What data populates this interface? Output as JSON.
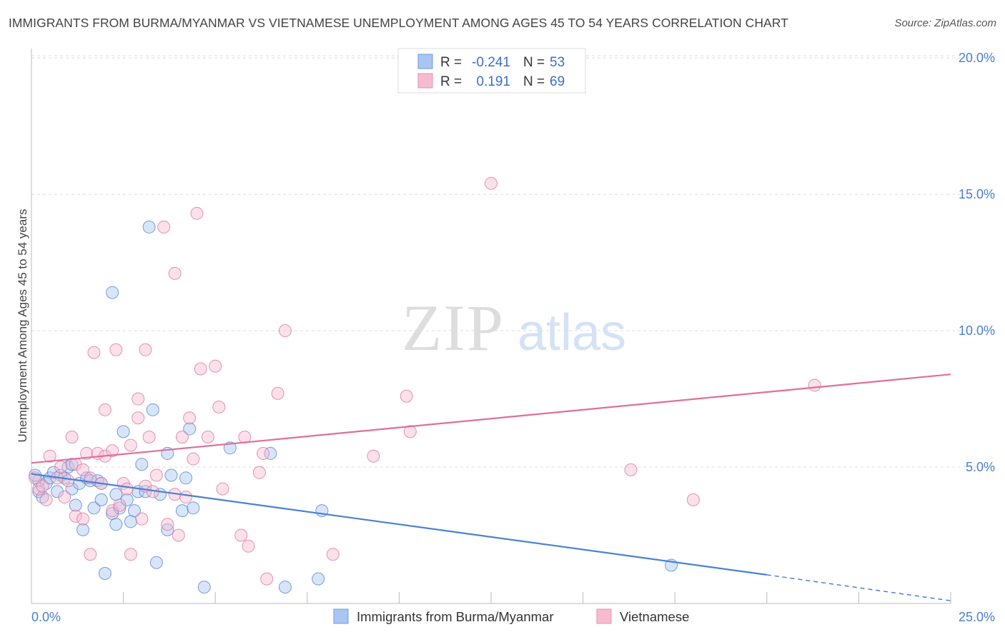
{
  "title": "IMMIGRANTS FROM BURMA/MYANMAR VS VIETNAMESE UNEMPLOYMENT AMONG AGES 45 TO 54 YEARS CORRELATION CHART",
  "source": "Source: ZipAtlas.com",
  "colors": {
    "blue": "#4a80d4",
    "pink": "#e06f9a",
    "blue_fill": "#a9c6f2",
    "pink_fill": "#f5bcd0",
    "axis_label": "#4a7fd1"
  },
  "chart_data": {
    "type": "scatter",
    "title": "IMMIGRANTS FROM BURMA/MYANMAR VS VIETNAMESE UNEMPLOYMENT AMONG AGES 45 TO 54 YEARS CORRELATION CHART",
    "xlabel": "",
    "ylabel": "Unemployment Among Ages 45 to 54 years",
    "xlim": [
      0,
      25
    ],
    "ylim": [
      0,
      20.5
    ],
    "x_tick_labels": [
      "0.0%",
      "25.0%"
    ],
    "y_ticks": [
      5,
      10,
      15,
      20
    ],
    "y_tick_labels": [
      "5.0%",
      "10.0%",
      "15.0%",
      "20.0%"
    ],
    "grid": true,
    "watermark": {
      "bold": "ZIP",
      "light": "atlas"
    },
    "legend": {
      "position": "top-center",
      "entries": [
        {
          "r_label": "R =",
          "r_value": "-0.241",
          "n_label": "N =",
          "n_value": "53"
        },
        {
          "r_label": "R =",
          "r_value": "0.191",
          "n_label": "N =",
          "n_value": "69"
        }
      ]
    },
    "series": [
      {
        "name": "Immigrants from Burma/Myanmar",
        "color": "blue",
        "trend": {
          "x0": 0,
          "y0": 4.75,
          "x1": 20,
          "y1": 1.05,
          "dashed_to_x": 25,
          "dashed_to_y": 0.1
        },
        "points": [
          [
            0.2,
            4.5
          ],
          [
            0.2,
            4.1
          ],
          [
            0.3,
            3.9
          ],
          [
            0.4,
            4.4
          ],
          [
            0.5,
            4.6
          ],
          [
            0.6,
            4.8
          ],
          [
            0.7,
            4.1
          ],
          [
            0.8,
            4.7
          ],
          [
            0.9,
            4.6
          ],
          [
            1.0,
            5.0
          ],
          [
            1.1,
            5.1
          ],
          [
            1.1,
            4.2
          ],
          [
            1.2,
            3.6
          ],
          [
            1.3,
            4.4
          ],
          [
            1.4,
            2.7
          ],
          [
            1.5,
            4.6
          ],
          [
            1.6,
            4.5
          ],
          [
            1.7,
            3.5
          ],
          [
            1.8,
            4.5
          ],
          [
            1.9,
            3.8
          ],
          [
            1.9,
            4.4
          ],
          [
            2.0,
            1.1
          ],
          [
            2.2,
            11.4
          ],
          [
            2.2,
            3.3
          ],
          [
            2.3,
            2.9
          ],
          [
            2.3,
            4.0
          ],
          [
            2.4,
            3.5
          ],
          [
            2.5,
            6.3
          ],
          [
            2.6,
            3.8
          ],
          [
            2.7,
            3.0
          ],
          [
            2.8,
            3.4
          ],
          [
            2.9,
            4.1
          ],
          [
            3.0,
            5.1
          ],
          [
            3.1,
            4.1
          ],
          [
            3.2,
            13.8
          ],
          [
            3.3,
            7.1
          ],
          [
            3.4,
            1.5
          ],
          [
            3.5,
            4.0
          ],
          [
            3.7,
            5.5
          ],
          [
            3.7,
            2.7
          ],
          [
            3.8,
            4.7
          ],
          [
            4.1,
            3.4
          ],
          [
            4.2,
            4.6
          ],
          [
            4.3,
            6.4
          ],
          [
            4.4,
            3.5
          ],
          [
            4.7,
            0.6
          ],
          [
            5.4,
            5.7
          ],
          [
            6.5,
            5.5
          ],
          [
            6.9,
            0.6
          ],
          [
            7.8,
            0.9
          ],
          [
            7.9,
            3.4
          ],
          [
            17.4,
            1.4
          ],
          [
            0.1,
            4.7
          ]
        ]
      },
      {
        "name": "Vietnamese",
        "color": "pink",
        "trend": {
          "x0": 0,
          "y0": 5.15,
          "x1": 25,
          "y1": 8.4
        },
        "points": [
          [
            0.1,
            4.6
          ],
          [
            0.2,
            4.2
          ],
          [
            0.3,
            4.3
          ],
          [
            0.4,
            3.8
          ],
          [
            0.5,
            5.4
          ],
          [
            0.7,
            4.6
          ],
          [
            0.9,
            3.9
          ],
          [
            1.0,
            4.5
          ],
          [
            1.1,
            6.1
          ],
          [
            1.2,
            5.1
          ],
          [
            1.2,
            3.2
          ],
          [
            1.4,
            4.9
          ],
          [
            1.5,
            5.5
          ],
          [
            1.6,
            4.6
          ],
          [
            1.6,
            1.8
          ],
          [
            1.8,
            5.5
          ],
          [
            1.9,
            4.4
          ],
          [
            1.7,
            9.2
          ],
          [
            2.0,
            7.1
          ],
          [
            2.0,
            5.4
          ],
          [
            2.2,
            3.4
          ],
          [
            2.2,
            5.6
          ],
          [
            2.3,
            9.3
          ],
          [
            2.4,
            3.6
          ],
          [
            2.5,
            4.4
          ],
          [
            2.6,
            4.2
          ],
          [
            2.7,
            1.8
          ],
          [
            2.9,
            6.8
          ],
          [
            2.9,
            7.5
          ],
          [
            3.0,
            3.1
          ],
          [
            3.1,
            9.3
          ],
          [
            3.2,
            6.1
          ],
          [
            3.1,
            4.3
          ],
          [
            3.3,
            4.1
          ],
          [
            3.4,
            4.7
          ],
          [
            3.6,
            13.8
          ],
          [
            3.7,
            2.9
          ],
          [
            3.9,
            12.1
          ],
          [
            3.9,
            4.0
          ],
          [
            4.0,
            2.5
          ],
          [
            4.1,
            6.1
          ],
          [
            4.2,
            3.9
          ],
          [
            4.3,
            6.8
          ],
          [
            4.4,
            5.3
          ],
          [
            4.5,
            14.3
          ],
          [
            4.6,
            8.6
          ],
          [
            4.8,
            6.1
          ],
          [
            5.0,
            8.7
          ],
          [
            5.1,
            7.2
          ],
          [
            5.2,
            4.2
          ],
          [
            5.7,
            2.5
          ],
          [
            5.8,
            6.1
          ],
          [
            5.9,
            2.1
          ],
          [
            6.2,
            4.8
          ],
          [
            6.3,
            5.5
          ],
          [
            6.4,
            0.9
          ],
          [
            6.7,
            7.7
          ],
          [
            6.9,
            10.0
          ],
          [
            8.2,
            1.8
          ],
          [
            9.3,
            5.4
          ],
          [
            10.2,
            7.6
          ],
          [
            10.3,
            6.3
          ],
          [
            12.5,
            15.4
          ],
          [
            16.3,
            4.9
          ],
          [
            18.0,
            3.8
          ],
          [
            21.3,
            8.0
          ],
          [
            0.8,
            5.0
          ],
          [
            1.4,
            3.1
          ],
          [
            2.7,
            5.8
          ]
        ]
      }
    ],
    "bottom_legend": [
      "Immigrants from Burma/Myanmar",
      "Vietnamese"
    ]
  }
}
